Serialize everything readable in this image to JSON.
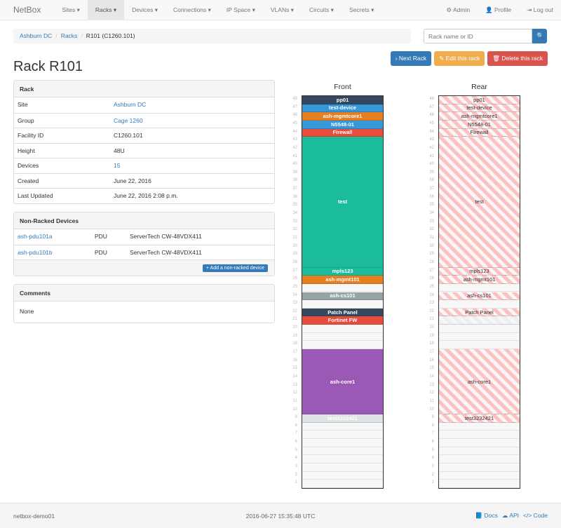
{
  "nav": {
    "brand": "NetBox",
    "items": [
      "Sites ▾",
      "Racks ▾",
      "Devices ▾",
      "Connections ▾",
      "IP Space ▾",
      "VLANs ▾",
      "Circuits ▾",
      "Secrets ▾"
    ],
    "active": 1,
    "right": [
      "⚙ Admin",
      "👤 Profile",
      "⇥ Log out"
    ]
  },
  "breadcrumb": [
    "Ashburn DC",
    "Racks",
    "R101 (C1260.101)"
  ],
  "search": {
    "placeholder": "Rack name or ID",
    "icon": "search-icon"
  },
  "buttons": {
    "next": "› Next Rack",
    "edit": "✎ Edit this rack",
    "delete": "🗑 Delete this rack"
  },
  "colors": {
    "next": "#337ab7",
    "edit": "#f0ad4e",
    "delete": "#d9534f"
  },
  "title": "Rack R101",
  "rack_panel": {
    "heading": "Rack",
    "rows": [
      {
        "k": "Site",
        "v": "Ashburn DC",
        "link": true
      },
      {
        "k": "Group",
        "v": "Cage 1260",
        "link": true
      },
      {
        "k": "Facility ID",
        "v": "C1260.101"
      },
      {
        "k": "Height",
        "v": "48U"
      },
      {
        "k": "Devices",
        "v": "15",
        "link": true
      },
      {
        "k": "Created",
        "v": "June 22, 2016"
      },
      {
        "k": "Last Updated",
        "v": "June 22, 2016 2:08 p.m."
      }
    ]
  },
  "nonracked": {
    "heading": "Non-Racked Devices",
    "rows": [
      [
        "ash-pdu101a",
        "PDU",
        "ServerTech CW-48VDX411"
      ],
      [
        "ash-pdu101b",
        "PDU",
        "ServerTech CW-48VDX411"
      ]
    ],
    "add": "+ Add a non-racked device"
  },
  "comments": {
    "heading": "Comments",
    "body": "None"
  },
  "elevation": {
    "front_label": "Front",
    "rear_label": "Rear",
    "units": 48,
    "devices": [
      {
        "name": "pp01",
        "top": 48,
        "size": 1,
        "color": "#34495e"
      },
      {
        "name": "test-device",
        "top": 47,
        "size": 1,
        "color": "#3498db"
      },
      {
        "name": "ash-mgmtcore1",
        "top": 46,
        "size": 1,
        "color": "#e67e22"
      },
      {
        "name": "N5548-01",
        "top": 45,
        "size": 1,
        "color": "#3498db"
      },
      {
        "name": "Firewall",
        "top": 44,
        "size": 1,
        "color": "#e74c3c"
      },
      {
        "name": "test",
        "top": 43,
        "size": 16,
        "color": "#1abc9c"
      },
      {
        "name": "mpls123",
        "top": 27,
        "size": 1,
        "color": "#1abc9c"
      },
      {
        "name": "ash-mgmt101",
        "top": 26,
        "size": 1,
        "color": "#e67e22"
      },
      {
        "name": "ash-cs101",
        "top": 24,
        "size": 1,
        "color": "#95a5a6"
      },
      {
        "name": "Patch Panel",
        "top": 22,
        "size": 1,
        "color": "#34495e"
      },
      {
        "name": "Fortinet FW",
        "top": 21,
        "size": 1,
        "color": "#e74c3c",
        "front_only": true
      },
      {
        "name": "ash-core1",
        "top": 17,
        "size": 8,
        "color": "#9b59b6"
      },
      {
        "name": "test3232421",
        "top": 9,
        "size": 1,
        "color": "#dfe3e5"
      }
    ]
  },
  "footer": {
    "host": "netbox-demo01",
    "time": "2016-06-27 15:35:48 UTC",
    "links": [
      "📘 Docs",
      "☁ API",
      "</> Code"
    ]
  }
}
